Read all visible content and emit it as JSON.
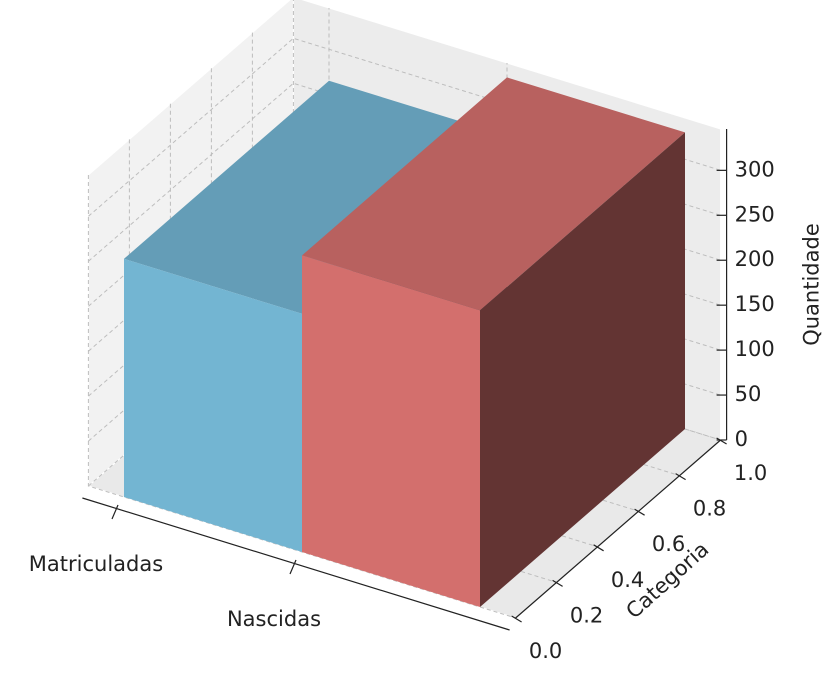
{
  "chart_data": {
    "type": "bar3d",
    "categories": [
      "Matriculadas",
      "Nascidas"
    ],
    "values": [
      265,
      330
    ],
    "colors": [
      "#73b5d2",
      "#d36f6d"
    ],
    "xlim": [
      -0.2,
      2.2
    ],
    "ylabel": "Categoria",
    "ylim": [
      0,
      1
    ],
    "yticks": [
      {
        "value": 0,
        "label": "0.0"
      },
      0.2,
      0.4,
      0.6,
      0.8,
      {
        "value": 1,
        "label": "1.0"
      }
    ],
    "zlabel": "Quantidade",
    "zlim": [
      0,
      346
    ],
    "zticks": [
      0,
      50,
      100,
      150,
      200,
      250,
      300
    ],
    "grid": true
  }
}
